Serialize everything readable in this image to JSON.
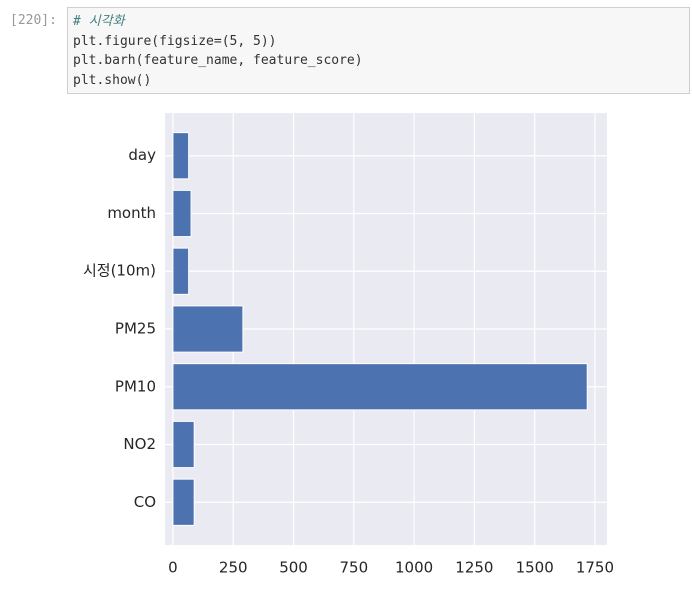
{
  "cell": {
    "prompt": "[220]:",
    "code": [
      "# 시각화",
      "plt.figure(figsize=(5, 5))",
      "plt.barh(feature_name, feature_score)",
      "plt.show()"
    ]
  },
  "chart_data": {
    "type": "barh",
    "categories": [
      "CO",
      "NO2",
      "PM10",
      "PM25",
      "시정(10m)",
      "month",
      "day"
    ],
    "values": [
      88,
      88,
      1718,
      290,
      65,
      75,
      65
    ],
    "color": "#4c72b0",
    "xlim": [
      -33,
      1800
    ],
    "xticks": [
      0,
      250,
      500,
      750,
      1000,
      1250,
      1500,
      1750
    ],
    "grid": true
  }
}
